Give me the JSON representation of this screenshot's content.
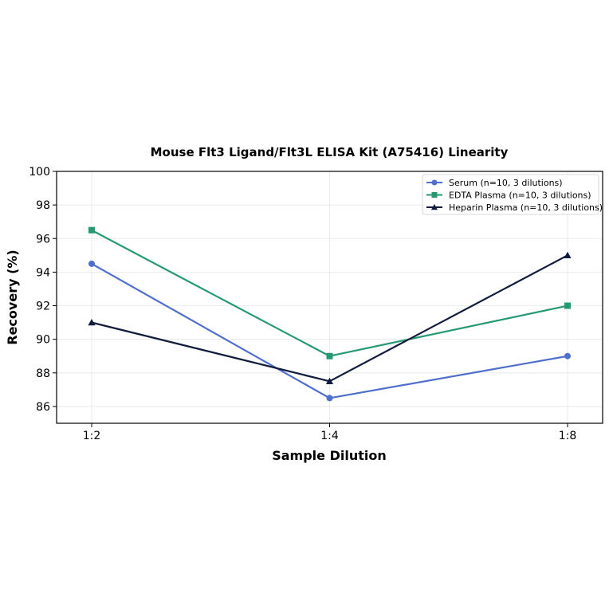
{
  "chart_data": {
    "type": "line",
    "title": "Mouse Flt3 Ligand/Flt3L ELISA Kit (A75416) Linearity",
    "xlabel": "Sample Dilution",
    "ylabel": "Recovery (%)",
    "categories": [
      "1:2",
      "1:4",
      "1:8"
    ],
    "ylim": [
      85,
      100
    ],
    "yticks": [
      "86",
      "88",
      "90",
      "92",
      "94",
      "96",
      "98",
      "100"
    ],
    "grid": true,
    "legend_position": "top-right",
    "series": [
      {
        "name": "Serum (n=10, 3 dilutions)",
        "values": [
          94.5,
          86.5,
          89.0
        ],
        "color": "#4f6fcc",
        "marker": "circle"
      },
      {
        "name": "EDTA Plasma (n=10, 3 dilutions)",
        "values": [
          96.5,
          89.0,
          92.0
        ],
        "color": "#259a72",
        "marker": "square"
      },
      {
        "name": "Heparin Plasma (n=10, 3 dilutions)",
        "values": [
          91.0,
          87.5,
          95.0
        ],
        "color": "#111c3d",
        "marker": "triangle"
      }
    ]
  }
}
